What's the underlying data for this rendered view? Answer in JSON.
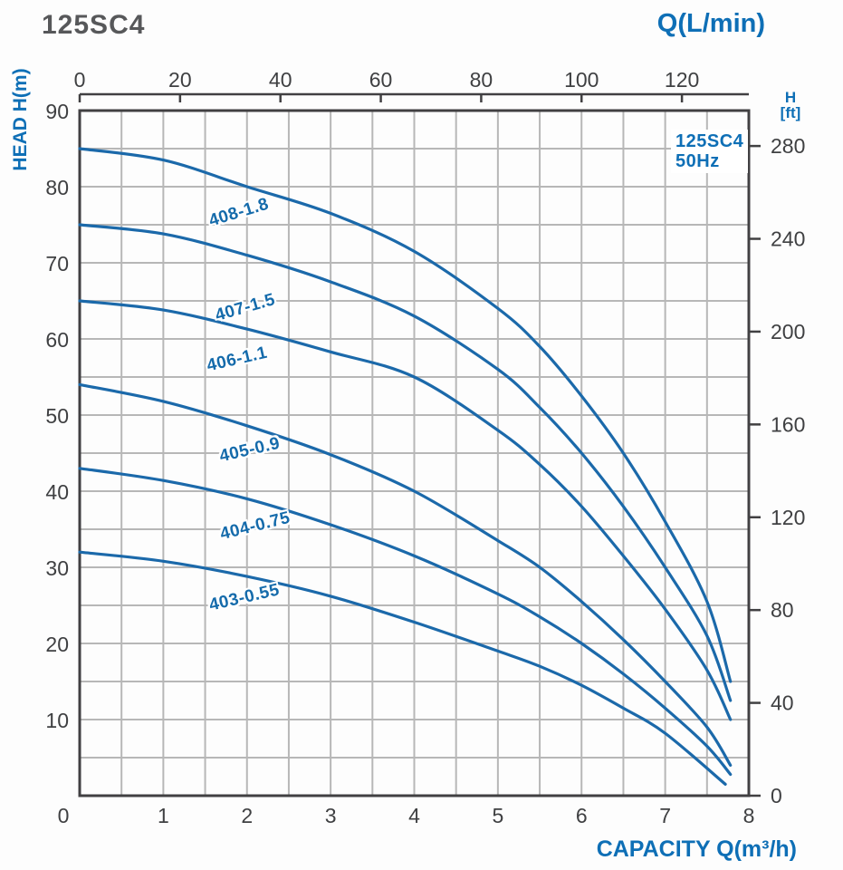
{
  "header": {
    "model": "125SC4"
  },
  "legend": {
    "line1": "125SC4",
    "line2": "50Hz"
  },
  "axes_titles": {
    "top": "Q(L/min)",
    "left": "HEAD H(m)",
    "right_line1": "H",
    "right_line2": "[ft]",
    "bottom": "CAPACITY Q(m³/h)"
  },
  "colors": {
    "curve": "#1b69aa",
    "axis_title": "#0e6fb6",
    "tick_text": "#3f4042",
    "grid": "#b7b7b7",
    "frame": "#414042",
    "title_text": "#57585a"
  },
  "chart_data": {
    "type": "line",
    "title": "125SC4 pump performance curves, 50Hz",
    "x_axis_bottom": {
      "label": "CAPACITY Q(m³/h)",
      "min": 0,
      "max": 8,
      "ticks": [
        0,
        1,
        2,
        3,
        4,
        5,
        6,
        7,
        8
      ],
      "grid_step": 0.5
    },
    "x_axis_top": {
      "label": "Q(L/min)",
      "min": 0,
      "max": 133.33,
      "ticks": [
        0,
        20,
        40,
        60,
        80,
        100,
        120
      ]
    },
    "y_axis_left": {
      "label": "HEAD H(m)",
      "min": 0,
      "max": 90,
      "ticks": [
        90,
        80,
        70,
        60,
        50,
        40,
        30,
        20,
        10,
        0
      ],
      "grid_step": 5
    },
    "y_axis_right": {
      "label": "H [ft]",
      "ticks": [
        280,
        240,
        200,
        160,
        120,
        80,
        40,
        0
      ],
      "m_per_ft": 0.3048
    },
    "grid": true,
    "legend_position": "top-right-inside",
    "series": [
      {
        "name": "408-1.8",
        "points": [
          [
            0,
            85
          ],
          [
            1,
            83.5
          ],
          [
            2,
            80
          ],
          [
            3,
            76.5
          ],
          [
            4,
            71.5
          ],
          [
            5,
            64
          ],
          [
            5.5,
            59
          ],
          [
            6,
            52.5
          ],
          [
            6.5,
            45
          ],
          [
            7,
            36
          ],
          [
            7.5,
            25.5
          ],
          [
            7.78,
            15
          ]
        ],
        "label": {
          "q": 1.9,
          "h": 76.5,
          "angle": -17
        }
      },
      {
        "name": "407-1.5",
        "points": [
          [
            0,
            75
          ],
          [
            1,
            73.8
          ],
          [
            2,
            71
          ],
          [
            3,
            67.5
          ],
          [
            4,
            63
          ],
          [
            5,
            56
          ],
          [
            5.5,
            51
          ],
          [
            6,
            45
          ],
          [
            6.5,
            38
          ],
          [
            7,
            30
          ],
          [
            7.5,
            21
          ],
          [
            7.78,
            12.5
          ]
        ],
        "label": {
          "q": 1.98,
          "h": 64,
          "angle": -16
        }
      },
      {
        "name": "406-1.1",
        "points": [
          [
            0,
            65
          ],
          [
            1,
            63.8
          ],
          [
            2,
            61.3
          ],
          [
            3,
            58.3
          ],
          [
            4,
            55
          ],
          [
            5,
            48
          ],
          [
            5.5,
            43.5
          ],
          [
            6,
            38
          ],
          [
            6.5,
            31.5
          ],
          [
            7,
            24.5
          ],
          [
            7.5,
            16.5
          ],
          [
            7.78,
            10
          ]
        ],
        "label": {
          "q": 1.88,
          "h": 57.3,
          "angle": -13
        }
      },
      {
        "name": "405-0.9",
        "points": [
          [
            0,
            54
          ],
          [
            1,
            51.8
          ],
          [
            2,
            48.6
          ],
          [
            3,
            44.8
          ],
          [
            4,
            40
          ],
          [
            5,
            33.5
          ],
          [
            5.5,
            30
          ],
          [
            6,
            25.5
          ],
          [
            6.5,
            20.5
          ],
          [
            7,
            15
          ],
          [
            7.5,
            9
          ],
          [
            7.78,
            4
          ]
        ],
        "label": {
          "q": 2.03,
          "h": 45.3,
          "angle": -13
        }
      },
      {
        "name": "404-0.75",
        "points": [
          [
            0,
            43
          ],
          [
            1,
            41.4
          ],
          [
            2,
            39
          ],
          [
            3,
            35.6
          ],
          [
            4,
            31.5
          ],
          [
            5,
            26.5
          ],
          [
            5.5,
            23.5
          ],
          [
            6,
            20
          ],
          [
            6.5,
            16
          ],
          [
            7,
            11.5
          ],
          [
            7.5,
            6.5
          ],
          [
            7.78,
            2.8
          ]
        ],
        "label": {
          "q": 2.1,
          "h": 35.4,
          "angle": -14
        }
      },
      {
        "name": "403-0.55",
        "points": [
          [
            0,
            32
          ],
          [
            1,
            30.8
          ],
          [
            2,
            28.8
          ],
          [
            3,
            26.2
          ],
          [
            4,
            22.8
          ],
          [
            5,
            19
          ],
          [
            5.5,
            17
          ],
          [
            6,
            14.5
          ],
          [
            6.5,
            11.5
          ],
          [
            7,
            8.2
          ],
          [
            7.72,
            1.5
          ]
        ],
        "label": {
          "q": 1.97,
          "h": 25.9,
          "angle": -13
        }
      }
    ]
  }
}
